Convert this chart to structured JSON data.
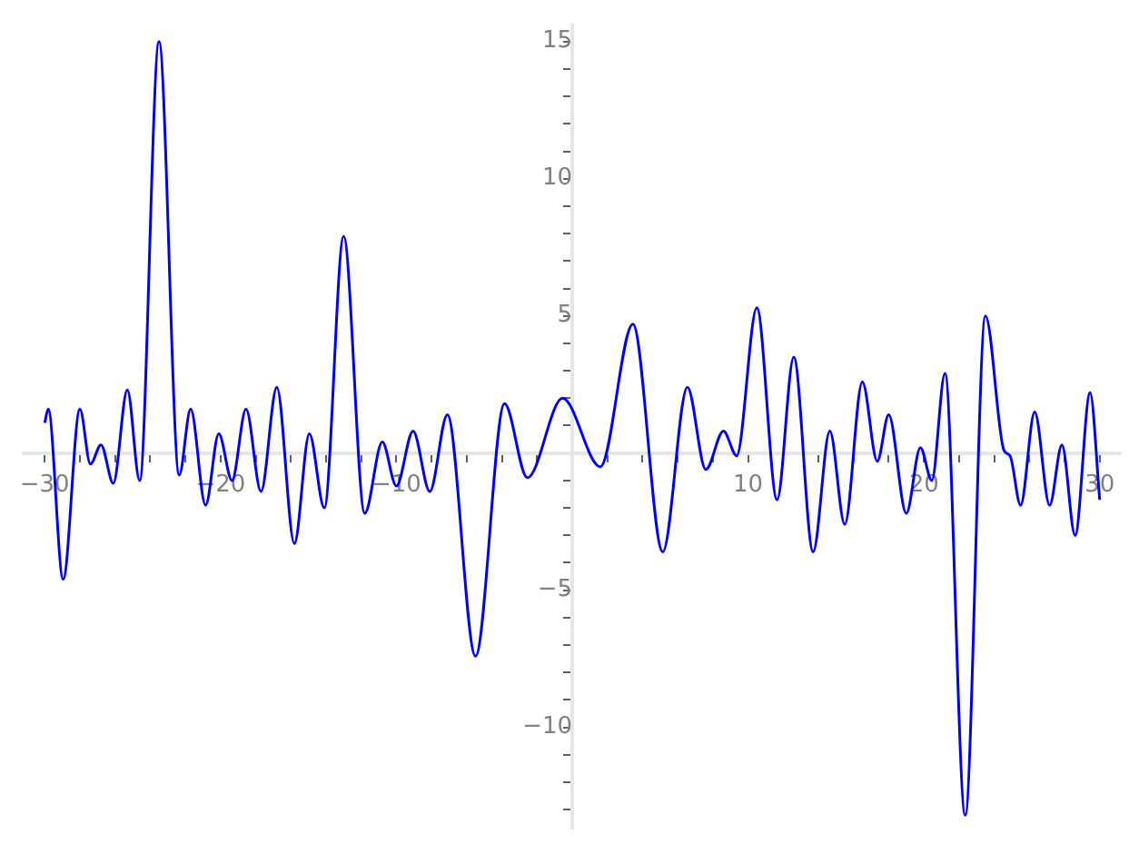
{
  "chart_data": {
    "type": "line",
    "x": [
      -30.0,
      -29.8,
      -28.95,
      -28.0,
      -27.4,
      -26.8,
      -26.1,
      -25.3,
      -24.6,
      -23.5,
      -22.35,
      -21.7,
      -20.85,
      -20.1,
      -19.35,
      -18.55,
      -17.7,
      -16.8,
      -15.8,
      -14.95,
      -14.1,
      -13.0,
      -11.8,
      -10.8,
      -10.0,
      -9.05,
      -8.1,
      -7.1,
      -5.5,
      -3.85,
      -2.55,
      -0.55,
      1.6,
      3.45,
      5.15,
      6.55,
      7.6,
      8.6,
      9.35,
      10.5,
      11.65,
      12.6,
      13.7,
      14.65,
      15.5,
      16.5,
      17.35,
      18.0,
      19.0,
      19.8,
      20.45,
      21.2,
      22.35,
      23.5,
      24.55,
      24.9,
      25.5,
      26.3,
      27.15,
      27.85,
      28.6,
      29.45,
      30.0
    ],
    "series": [
      {
        "color": "#0000ff",
        "values": [
          1.1,
          1.6,
          -4.6,
          1.6,
          -0.4,
          0.3,
          -1.1,
          2.3,
          -1.0,
          15.0,
          -0.8,
          1.6,
          -1.9,
          0.7,
          -1.0,
          1.6,
          -1.4,
          2.4,
          -3.3,
          0.7,
          -2.0,
          7.9,
          -2.2,
          0.4,
          -1.2,
          0.8,
          -1.4,
          1.4,
          -7.4,
          1.8,
          -0.9,
          2.0,
          -0.5,
          4.7,
          -3.6,
          2.4,
          -0.6,
          0.8,
          -0.1,
          5.3,
          -1.7,
          3.5,
          -3.6,
          0.8,
          -2.6,
          2.6,
          -0.3,
          1.4,
          -2.2,
          0.2,
          -1.0,
          2.9,
          -13.2,
          5.0,
          0.1,
          -0.1,
          -1.9,
          1.5,
          -1.9,
          0.3,
          -3.0,
          2.2,
          -1.7
        ]
      }
    ],
    "xlim": [
      -31.2,
      31.2
    ],
    "ylim": [
      -13.7,
      15.6
    ],
    "xticks": [
      -30,
      {
        "value": -28,
        "label": null
      },
      {
        "value": -26,
        "label": null
      },
      {
        "value": -24,
        "label": null
      },
      {
        "value": -22,
        "label": null
      },
      -20,
      {
        "value": -18,
        "label": null
      },
      {
        "value": -16,
        "label": null
      },
      {
        "value": -14,
        "label": null
      },
      {
        "value": -12,
        "label": null
      },
      -10,
      {
        "value": -8,
        "label": null
      },
      {
        "value": -6,
        "label": null
      },
      {
        "value": -4,
        "label": null
      },
      {
        "value": -2,
        "label": null
      },
      {
        "value": 2,
        "label": null
      },
      {
        "value": 4,
        "label": null
      },
      {
        "value": 6,
        "label": null
      },
      {
        "value": 8,
        "label": null
      },
      10,
      {
        "value": 12,
        "label": null
      },
      {
        "value": 14,
        "label": null
      },
      {
        "value": 16,
        "label": null
      },
      {
        "value": 18,
        "label": null
      },
      20,
      {
        "value": 22,
        "label": null
      },
      {
        "value": 24,
        "label": null
      },
      {
        "value": 26,
        "label": null
      },
      {
        "value": 28,
        "label": null
      },
      30
    ],
    "yticks": [
      {
        "value": -13,
        "label": null
      },
      {
        "value": -12,
        "label": null
      },
      {
        "value": -11,
        "label": null
      },
      -10,
      {
        "value": -9,
        "label": null
      },
      {
        "value": -8,
        "label": null
      },
      {
        "value": -7,
        "label": null
      },
      {
        "value": -6,
        "label": null
      },
      -5,
      {
        "value": -4,
        "label": null
      },
      {
        "value": -3,
        "label": null
      },
      {
        "value": -2,
        "label": null
      },
      {
        "value": -1,
        "label": null
      },
      {
        "value": 1,
        "label": null
      },
      {
        "value": 2,
        "label": null
      },
      {
        "value": 3,
        "label": null
      },
      {
        "value": 4,
        "label": null
      },
      5,
      {
        "value": 6,
        "label": null
      },
      {
        "value": 7,
        "label": null
      },
      {
        "value": 8,
        "label": null
      },
      {
        "value": 9,
        "label": null
      },
      10,
      {
        "value": 11,
        "label": null
      },
      {
        "value": 12,
        "label": null
      },
      {
        "value": 13,
        "label": null
      },
      {
        "value": 14,
        "label": null
      },
      15
    ]
  }
}
